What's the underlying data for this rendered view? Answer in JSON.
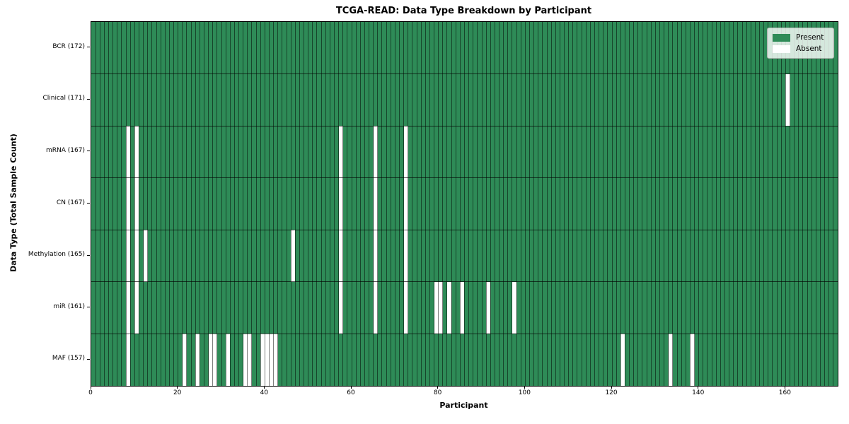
{
  "title": "TCGA-READ: Data Type Breakdown by Participant",
  "xlabel": "Participant",
  "ylabel": "Data Type (Total Sample Count)",
  "legend": {
    "present_label": "Present",
    "absent_label": "Absent",
    "position": "upper right"
  },
  "colors": {
    "present": "#2e8b57",
    "absent": "#ffffff",
    "cell_line": "rgba(0,0,0,0.5)",
    "row_line": "rgba(0,0,0,0.65)",
    "spine": "#000000",
    "legend_bg": "rgba(255,255,255,0.8)",
    "legend_border": "#b0b6b0"
  },
  "chart_data": {
    "type": "heatmap",
    "title": "TCGA-READ: Data Type Breakdown by Participant",
    "xlabel": "Participant",
    "ylabel": "Data Type (Total Sample Count)",
    "n_participants": 172,
    "xlim": [
      0,
      172
    ],
    "x_ticks": [
      0,
      20,
      40,
      60,
      80,
      100,
      120,
      140,
      160
    ],
    "grid": "per-participant vertical cell lines and per-row horizontal lines",
    "legend_entries": [
      {
        "label": "Present",
        "color": "#2e8b57"
      },
      {
        "label": "Absent",
        "color": "#ffffff"
      }
    ],
    "rows": [
      {
        "label": "BCR (172)",
        "data_type": "BCR",
        "total": 172,
        "absent_participants": []
      },
      {
        "label": "Clinical (171)",
        "data_type": "Clinical",
        "total": 171,
        "absent_participants": [
          160
        ]
      },
      {
        "label": "mRNA (167)",
        "data_type": "mRNA",
        "total": 167,
        "absent_participants": [
          8,
          10,
          57,
          65,
          72
        ]
      },
      {
        "label": "CN (167)",
        "data_type": "CN",
        "total": 167,
        "absent_participants": [
          8,
          10,
          57,
          65,
          72
        ]
      },
      {
        "label": "Methylation (165)",
        "data_type": "Methylation",
        "total": 165,
        "absent_participants": [
          8,
          10,
          12,
          46,
          57,
          65,
          72
        ]
      },
      {
        "label": "miR (161)",
        "data_type": "miR",
        "total": 161,
        "absent_participants": [
          8,
          10,
          57,
          65,
          72,
          79,
          80,
          82,
          85,
          91,
          97
        ]
      },
      {
        "label": "MAF (157)",
        "data_type": "MAF",
        "total": 157,
        "absent_participants": [
          8,
          21,
          24,
          27,
          28,
          31,
          35,
          36,
          39,
          40,
          41,
          42,
          122,
          133,
          138
        ]
      }
    ]
  }
}
